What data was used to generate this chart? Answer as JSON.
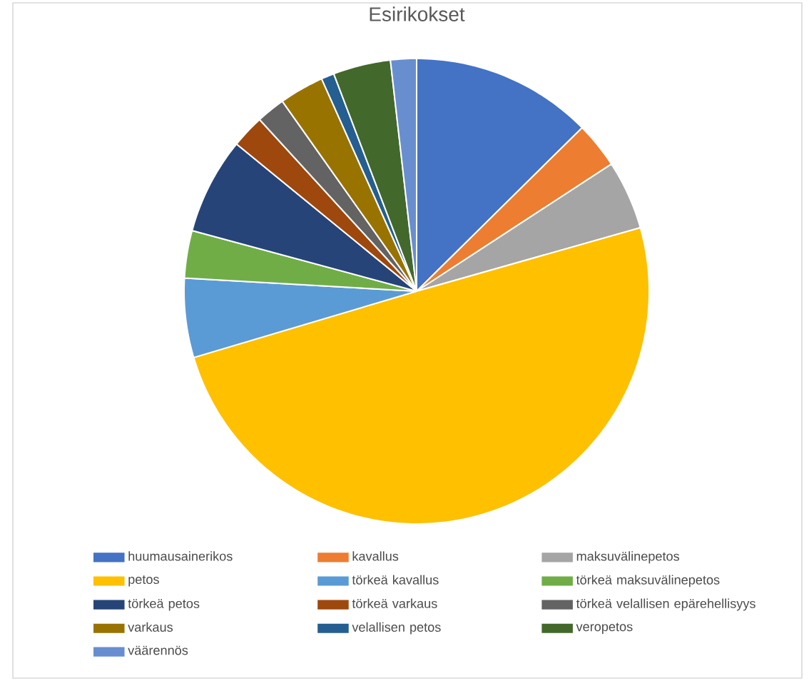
{
  "chart_data": {
    "type": "pie",
    "title": "Esirikokset",
    "categories": [
      "huumausainerikos",
      "kavallus",
      "maksuvälinepetos",
      "petos",
      "törkeä kavallus",
      "törkeä maksuvälinepetos",
      "törkeä petos",
      "törkeä varkaus",
      "törkeä velallisen epärehellisyys",
      "varkaus",
      "velallisen petos",
      "veropetos",
      "väärennös"
    ],
    "values": [
      12.6,
      3.2,
      4.8,
      49.8,
      5.5,
      3.3,
      6.7,
      2.3,
      2.0,
      3.1,
      0.9,
      4.0,
      1.8
    ],
    "colors": [
      "#4472c4",
      "#ed7d31",
      "#a5a5a5",
      "#ffc000",
      "#5b9bd5",
      "#70ad47",
      "#264478",
      "#9e480e",
      "#636363",
      "#997300",
      "#255e91",
      "#43682b",
      "#698ed0"
    ],
    "legend": "bottom"
  }
}
